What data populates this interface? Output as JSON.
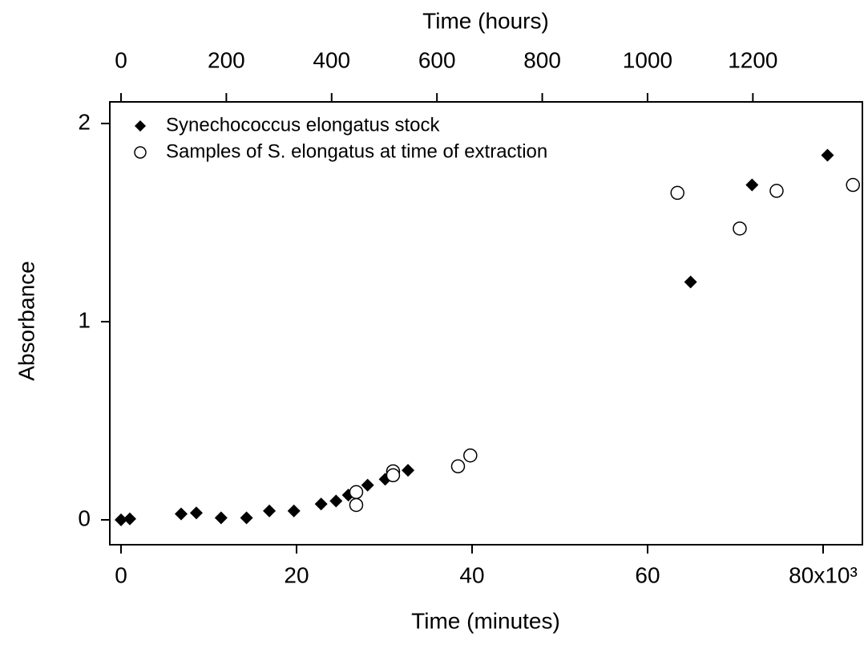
{
  "chart_data": {
    "type": "scatter",
    "xlabel": "Time (minutes)",
    "ylabel": "Absorbance",
    "x2label": "Time (hours)",
    "xlim": [
      -1279,
      84475
    ],
    "xticks": [
      0,
      {
        "value": 20000,
        "label": "20"
      },
      {
        "value": 40000,
        "label": "40"
      },
      {
        "value": 60000,
        "label": "60"
      },
      {
        "value": 80000,
        "label": "80x10³"
      }
    ],
    "x2lim": [
      -21.3,
      1408
    ],
    "x2ticks": [
      0,
      200,
      400,
      600,
      800,
      1000,
      1200
    ],
    "ylim": [
      -0.1255,
      2.109
    ],
    "yticks": [
      0,
      1,
      2
    ],
    "legend": "top-left",
    "series": [
      {
        "name": "Synechococcus elongatus stock",
        "marker": "diamond",
        "color": "#000000",
        "x": [
          0,
          1000,
          6850,
          8580,
          11400,
          14300,
          16900,
          19700,
          22800,
          24500,
          25900,
          28100,
          30100,
          32700,
          64900,
          71900,
          80500
        ],
        "values": [
          0,
          0.005,
          0.03,
          0.035,
          0.01,
          0.01,
          0.045,
          0.045,
          0.08,
          0.095,
          0.125,
          0.175,
          0.205,
          0.25,
          1.2,
          1.69,
          1.84
        ]
      },
      {
        "name": "Samples of S. elongatus at time of extraction",
        "marker": "circle",
        "color": "#000000",
        "x": [
          26800,
          26800,
          31000,
          31000,
          38400,
          39800,
          63400,
          70500,
          74700,
          83400
        ],
        "values": [
          0.14,
          0.075,
          0.245,
          0.225,
          0.27,
          0.325,
          1.65,
          1.47,
          1.66,
          1.69
        ]
      }
    ]
  }
}
